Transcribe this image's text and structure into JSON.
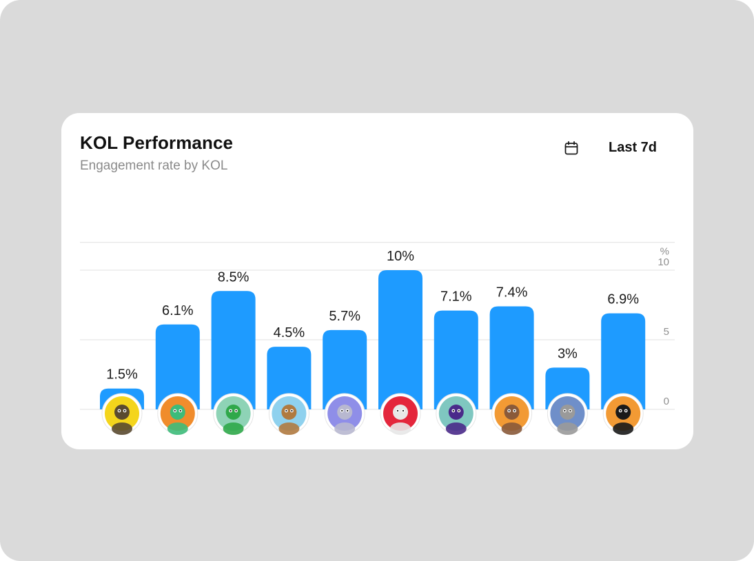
{
  "header": {
    "title": "KOL Performance",
    "subtitle": "Engagement rate by KOL"
  },
  "range_picker": {
    "icon": "calendar-icon",
    "label": "Last 7d"
  },
  "colors": {
    "bar": "#1e9bff",
    "background": "#dadada",
    "card": "#ffffff",
    "gridline": "#e7e7e7"
  },
  "chart_data": {
    "type": "bar",
    "title": "KOL Performance",
    "subtitle": "Engagement rate by KOL",
    "ylabel": "%",
    "ylim": [
      0,
      12
    ],
    "y_ticks": [
      0,
      5,
      10
    ],
    "grid": true,
    "y_axis_position": "right",
    "value_labels": [
      "1.5%",
      "6.1%",
      "8.5%",
      "4.5%",
      "5.7%",
      "10%",
      "7.1%",
      "7.4%",
      "3%",
      "6.9%"
    ],
    "values": [
      1.5,
      6.1,
      8.5,
      4.5,
      5.7,
      10,
      7.1,
      7.4,
      3,
      6.9
    ],
    "categories": [
      {
        "avatar": "meerkat-halo-avatar",
        "bg": "#f4d51c",
        "fg": "#5a4a30"
      },
      {
        "avatar": "lizard-avatar",
        "bg": "#f08c2c",
        "fg": "#3dbb7a"
      },
      {
        "avatar": "robot-avatar",
        "bg": "#8ed3b6",
        "fg": "#2fa84a"
      },
      {
        "avatar": "ape-avatar",
        "bg": "#8fd1ee",
        "fg": "#b07a40"
      },
      {
        "avatar": "alien-avatar",
        "bg": "#8f8ee8",
        "fg": "#b8b8d0"
      },
      {
        "avatar": "viking-avatar",
        "bg": "#e4263c",
        "fg": "#e8e8e8"
      },
      {
        "avatar": "wizard-avatar",
        "bg": "#7fc7c0",
        "fg": "#4a2a8a"
      },
      {
        "avatar": "monkey-avatar",
        "bg": "#f29a34",
        "fg": "#8a5a3a"
      },
      {
        "avatar": "cyber-avatar",
        "bg": "#6f8fc9",
        "fg": "#9a9a9a"
      },
      {
        "avatar": "pixel-punk-avatar",
        "bg": "#f29a34",
        "fg": "#1a1a1a"
      }
    ]
  }
}
